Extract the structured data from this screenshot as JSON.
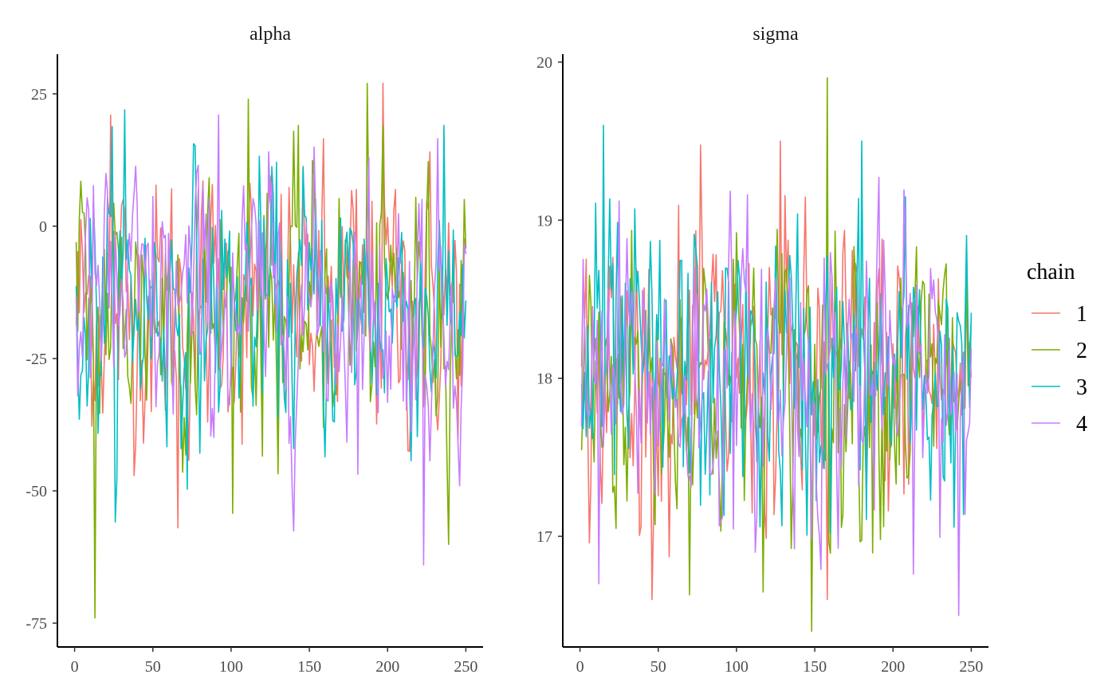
{
  "chart_data": {
    "type": "line",
    "facets": [
      {
        "title": "alpha",
        "xlim": [
          -11,
          261
        ],
        "ylim": [
          -79.5,
          32.5
        ],
        "xticks": [
          0,
          50,
          100,
          150,
          200,
          250
        ],
        "xtick_labels": [
          "0",
          "50",
          "100",
          "150",
          "200",
          "250"
        ],
        "yticks": [
          25,
          0,
          -25,
          -50,
          -75
        ],
        "ytick_labels": [
          "25",
          "0",
          "-25",
          "-50",
          "-75"
        ],
        "center": -15,
        "spread": 12,
        "extremes": [
          {
            "chain": 1,
            "x": 197,
            "y": 27
          },
          {
            "chain": 2,
            "x": 187,
            "y": 27
          },
          {
            "chain": 2,
            "x": 13,
            "y": -74
          },
          {
            "chain": 4,
            "x": 223,
            "y": -64
          },
          {
            "chain": 1,
            "x": 66,
            "y": -57
          },
          {
            "chain": 4,
            "x": 92,
            "y": 21
          },
          {
            "chain": 2,
            "x": 111,
            "y": 24
          },
          {
            "chain": 3,
            "x": 32,
            "y": 22
          },
          {
            "chain": 1,
            "x": 23,
            "y": 21
          }
        ]
      },
      {
        "title": "sigma",
        "xlim": [
          -11,
          261
        ],
        "ylim": [
          16.3,
          20.05
        ],
        "xticks": [
          0,
          50,
          100,
          150,
          200,
          250
        ],
        "xtick_labels": [
          "0",
          "50",
          "100",
          "150",
          "200",
          "250"
        ],
        "yticks": [
          20,
          19,
          18,
          17
        ],
        "ytick_labels": [
          "20",
          "19",
          "18",
          "17"
        ],
        "center": 18.0,
        "spread": 0.45,
        "extremes": [
          {
            "chain": 2,
            "x": 158,
            "y": 19.9
          },
          {
            "chain": 2,
            "x": 148,
            "y": 16.4
          },
          {
            "chain": 4,
            "x": 242,
            "y": 16.5
          },
          {
            "chain": 3,
            "x": 15,
            "y": 19.6
          },
          {
            "chain": 1,
            "x": 128,
            "y": 19.5
          },
          {
            "chain": 3,
            "x": 180,
            "y": 19.5
          },
          {
            "chain": 4,
            "x": 12,
            "y": 16.7
          },
          {
            "chain": 1,
            "x": 158,
            "y": 16.6
          }
        ]
      }
    ],
    "n_iterations": 250,
    "series": [
      {
        "name": "1",
        "color": "#F8766D"
      },
      {
        "name": "2",
        "color": "#7CAE00"
      },
      {
        "name": "3",
        "color": "#00BFC4"
      },
      {
        "name": "4",
        "color": "#C77CFF"
      }
    ],
    "legend": {
      "title": "chain",
      "position": "right"
    },
    "grid": false
  }
}
